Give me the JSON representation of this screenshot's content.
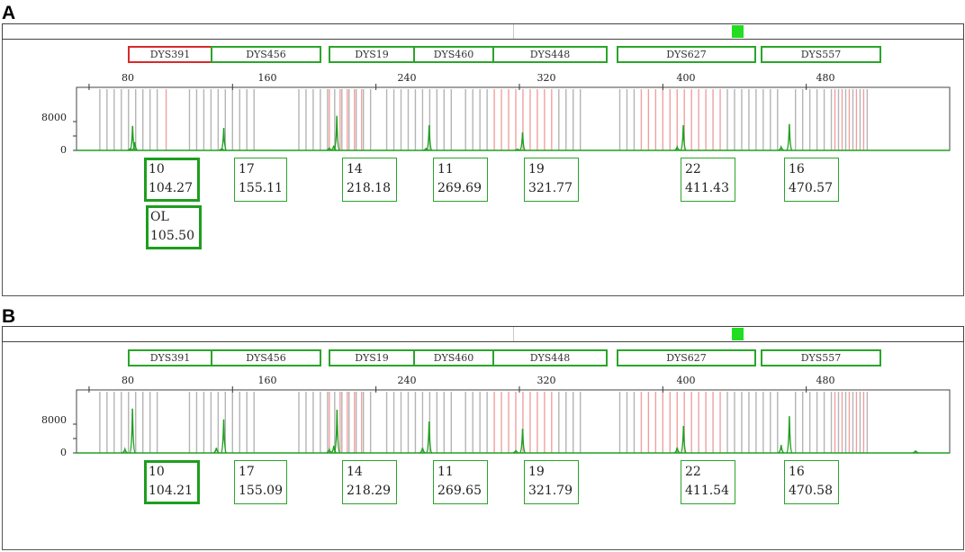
{
  "panels": [
    {
      "letter": "A",
      "markers": [
        {
          "name": "DYS391",
          "flag": true
        },
        {
          "name": "DYS456",
          "flag": false
        },
        {
          "name": "DYS19",
          "flag": false
        },
        {
          "name": "DYS460",
          "flag": false
        },
        {
          "name": "DYS448",
          "flag": false
        },
        {
          "name": "DYS627",
          "flag": false
        },
        {
          "name": "DYS557",
          "flag": false
        }
      ],
      "calls": [
        {
          "allele": "10",
          "size": "104.27",
          "bold": true
        },
        {
          "allele": "OL",
          "size": "105.50",
          "bold": true
        },
        {
          "allele": "17",
          "size": "155.11",
          "bold": false
        },
        {
          "allele": "14",
          "size": "218.18",
          "bold": false
        },
        {
          "allele": "11",
          "size": "269.69",
          "bold": false
        },
        {
          "allele": "19",
          "size": "321.77",
          "bold": false
        },
        {
          "allele": "22",
          "size": "411.43",
          "bold": false
        },
        {
          "allele": "16",
          "size": "470.57",
          "bold": false
        }
      ]
    },
    {
      "letter": "B",
      "markers": [
        {
          "name": "DYS391",
          "flag": false
        },
        {
          "name": "DYS456",
          "flag": false
        },
        {
          "name": "DYS19",
          "flag": false
        },
        {
          "name": "DYS460",
          "flag": false
        },
        {
          "name": "DYS448",
          "flag": false
        },
        {
          "name": "DYS627",
          "flag": false
        },
        {
          "name": "DYS557",
          "flag": false
        }
      ],
      "calls": [
        {
          "allele": "10",
          "size": "104.21",
          "bold": true
        },
        {
          "allele": "17",
          "size": "155.09",
          "bold": false
        },
        {
          "allele": "14",
          "size": "218.29",
          "bold": false
        },
        {
          "allele": "11",
          "size": "269.65",
          "bold": false
        },
        {
          "allele": "19",
          "size": "321.79",
          "bold": false
        },
        {
          "allele": "22",
          "size": "411.54",
          "bold": false
        },
        {
          "allele": "16",
          "size": "470.58",
          "bold": false
        }
      ]
    }
  ],
  "chart_data": [
    {
      "type": "line",
      "panel": "A",
      "xlabel": "",
      "ylabel": "",
      "x_ticks": [
        80,
        160,
        240,
        320,
        400,
        480
      ],
      "x_tick_labels": [
        "80",
        "160",
        "240",
        "320",
        "400",
        "480"
      ],
      "xlim": [
        73,
        560
      ],
      "y_tick_labels": [
        "8000",
        "0"
      ],
      "ylim": [
        0,
        17000
      ],
      "peak_color": "#20a020",
      "bin_colors": {
        "allele_bin": "#b4b4b4",
        "virtual_bin": "#f0a0a0"
      },
      "series": [
        {
          "peaks": [
            {
              "x": 103.0,
              "y": 400
            },
            {
              "x": 104.27,
              "y": 6800
            },
            {
              "x": 105.5,
              "y": 2300
            },
            {
              "x": 154.0,
              "y": 400
            },
            {
              "x": 155.11,
              "y": 6200
            },
            {
              "x": 214.0,
              "y": 600
            },
            {
              "x": 216.5,
              "y": 1300
            },
            {
              "x": 218.18,
              "y": 9600
            },
            {
              "x": 268.0,
              "y": 500
            },
            {
              "x": 269.69,
              "y": 7000
            },
            {
              "x": 319.0,
              "y": 300
            },
            {
              "x": 321.77,
              "y": 5000
            },
            {
              "x": 408.0,
              "y": 900
            },
            {
              "x": 411.43,
              "y": 7000
            },
            {
              "x": 466.0,
              "y": 900
            },
            {
              "x": 470.57,
              "y": 7300
            }
          ]
        }
      ],
      "bin_ranges": [
        {
          "from": 86,
          "to": 120,
          "step": 4,
          "virtual": [
            123
          ]
        },
        {
          "from": 136,
          "to": 172,
          "step": 4,
          "virtual": []
        },
        {
          "from": 197,
          "to": 239,
          "step": 4,
          "virtual": [
            214,
            220,
            224,
            228,
            232
          ]
        },
        {
          "from": 246,
          "to": 282,
          "step": 4,
          "virtual": []
        },
        {
          "from": 290,
          "to": 354,
          "step": 4,
          "virtual": [
            306,
            310,
            314,
            318,
            322,
            326,
            330,
            334,
            338
          ]
        },
        {
          "from": 376,
          "to": 466,
          "step": 4,
          "virtual": [
            388,
            392,
            396,
            400,
            404,
            408,
            412,
            416,
            420,
            424,
            428,
            432
          ]
        },
        {
          "from": 474,
          "to": 516,
          "step": 4,
          "virtual": [
            496,
            500,
            504,
            508,
            512
          ]
        }
      ]
    },
    {
      "type": "line",
      "panel": "B",
      "xlabel": "",
      "ylabel": "",
      "x_ticks": [
        80,
        160,
        240,
        320,
        400,
        480
      ],
      "x_tick_labels": [
        "80",
        "160",
        "240",
        "320",
        "400",
        "480"
      ],
      "xlim": [
        73,
        560
      ],
      "y_tick_labels": [
        "8000",
        "0"
      ],
      "ylim": [
        0,
        17000
      ],
      "peak_color": "#20a020",
      "bin_colors": {
        "allele_bin": "#b4b4b4",
        "virtual_bin": "#f0a0a0"
      },
      "series": [
        {
          "peaks": [
            {
              "x": 100.0,
              "y": 1000
            },
            {
              "x": 104.21,
              "y": 12300
            },
            {
              "x": 151.0,
              "y": 1400
            },
            {
              "x": 155.09,
              "y": 9300
            },
            {
              "x": 214.0,
              "y": 900
            },
            {
              "x": 216.5,
              "y": 2000
            },
            {
              "x": 218.29,
              "y": 12000
            },
            {
              "x": 266.0,
              "y": 1400
            },
            {
              "x": 269.65,
              "y": 8700
            },
            {
              "x": 318.0,
              "y": 600
            },
            {
              "x": 321.79,
              "y": 6700
            },
            {
              "x": 408.0,
              "y": 1500
            },
            {
              "x": 411.54,
              "y": 7500
            },
            {
              "x": 466.0,
              "y": 2200
            },
            {
              "x": 470.58,
              "y": 10200
            },
            {
              "x": 541.0,
              "y": 500
            }
          ]
        }
      ],
      "bin_ranges": [
        {
          "from": 86,
          "to": 120,
          "step": 4,
          "virtual": []
        },
        {
          "from": 136,
          "to": 172,
          "step": 4,
          "virtual": []
        },
        {
          "from": 197,
          "to": 239,
          "step": 4,
          "virtual": [
            214,
            220,
            224,
            228,
            232
          ]
        },
        {
          "from": 246,
          "to": 282,
          "step": 4,
          "virtual": []
        },
        {
          "from": 290,
          "to": 354,
          "step": 4,
          "virtual": [
            306,
            310,
            314,
            318,
            322,
            326,
            330,
            334,
            338
          ]
        },
        {
          "from": 376,
          "to": 466,
          "step": 4,
          "virtual": [
            388,
            392,
            396,
            400,
            404,
            408,
            412,
            416,
            420,
            424,
            428,
            432
          ]
        },
        {
          "from": 474,
          "to": 516,
          "step": 4,
          "virtual": [
            496,
            500,
            504,
            508,
            512
          ]
        }
      ]
    }
  ]
}
